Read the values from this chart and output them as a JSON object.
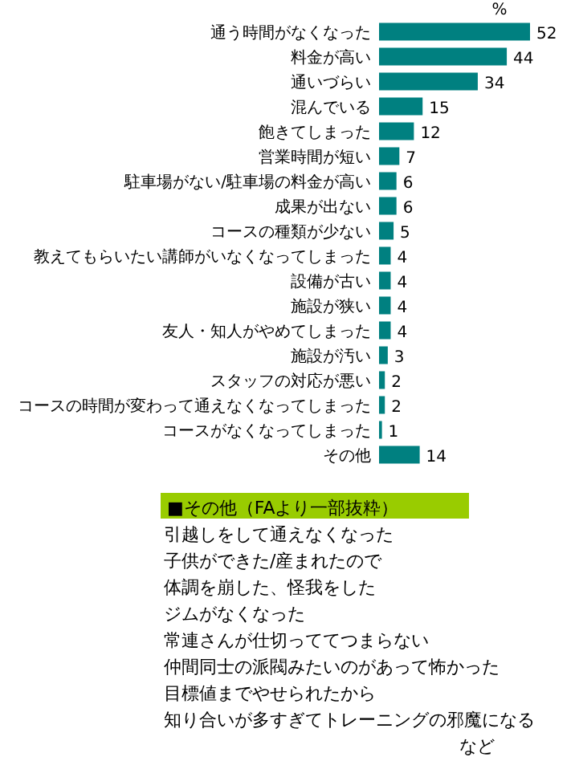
{
  "chart_data": {
    "type": "bar",
    "orientation": "horizontal",
    "xlabel": "%",
    "color": "#008080",
    "data_labels": true,
    "categories": [
      "通う時間がなくなった",
      "料金が高い",
      "通いづらい",
      "混んでいる",
      "飽きてしまった",
      "営業時間が短い",
      "駐車場がない/駐車場の料金が高い",
      "成果が出ない",
      "コースの種類が少ない",
      "教えてもらいたい講師がいなくなってしまった",
      "設備が古い",
      "施設が狭い",
      "友人・知人がやめてしまった",
      "施設が汚い",
      "スタッフの対応が悪い",
      "コースの時間が変わって通えなくなってしまった",
      "コースがなくなってしまった",
      "その他"
    ],
    "values": [
      52,
      44,
      34,
      15,
      12,
      7,
      6,
      6,
      5,
      4,
      4,
      4,
      4,
      3,
      2,
      2,
      1,
      14
    ],
    "annotations": [
      "■その他（FAより一部抜粋）",
      "引越しをして通えなくなった",
      "子供ができた/産まれたので",
      "体調を崩した、怪我をした",
      "ジムがなくなった",
      "常連さんが仕切っててつまらない",
      "仲間同士の派閥みたいのがあって怖かった",
      "目標値までやせられたから",
      "知り合いが多すぎてトレーニングの邪魔になる",
      "など"
    ]
  }
}
